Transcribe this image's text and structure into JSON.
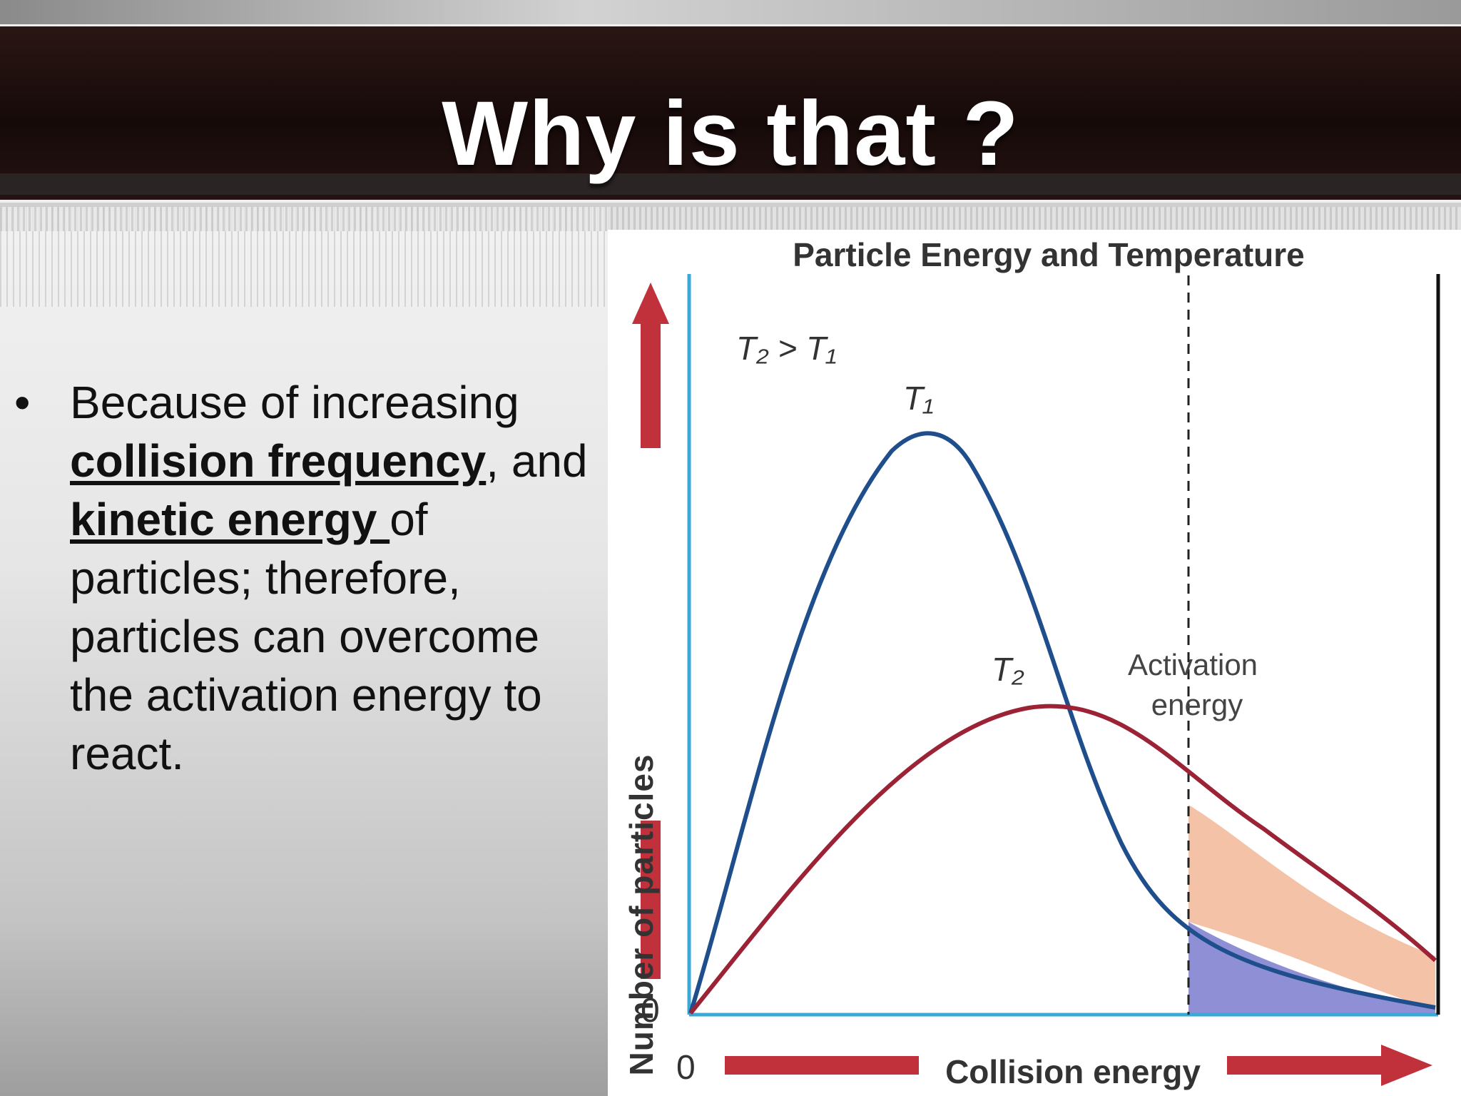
{
  "slide": {
    "title": "Why is that ?",
    "bullet": {
      "marker": "•",
      "text_1": "Because of increasing ",
      "emph_1": "collision frequency",
      "text_2": ", and ",
      "emph_2": "kinetic energy ",
      "text_3": "of particles; therefore, particles can overcome the activation energy to react."
    }
  },
  "figure": {
    "title": "Particle Energy and Temperature",
    "xlabel": "Collision energy",
    "ylabel": "Number of particles",
    "x_origin": "0",
    "y_origin": "0",
    "condition": "T₂ > T₁",
    "curve_t1_label": "T₁",
    "curve_t2_label": "T₂",
    "threshold_label_line1": "Activation",
    "threshold_label_line2": "energy",
    "colors": {
      "t1": "#1f4e8c",
      "t2": "#9b2335",
      "axis": "#3aa9d8",
      "arrow": "#c0313c",
      "fill_t2": "#f4c2a6",
      "fill_t1": "#8f8fd6"
    }
  }
}
